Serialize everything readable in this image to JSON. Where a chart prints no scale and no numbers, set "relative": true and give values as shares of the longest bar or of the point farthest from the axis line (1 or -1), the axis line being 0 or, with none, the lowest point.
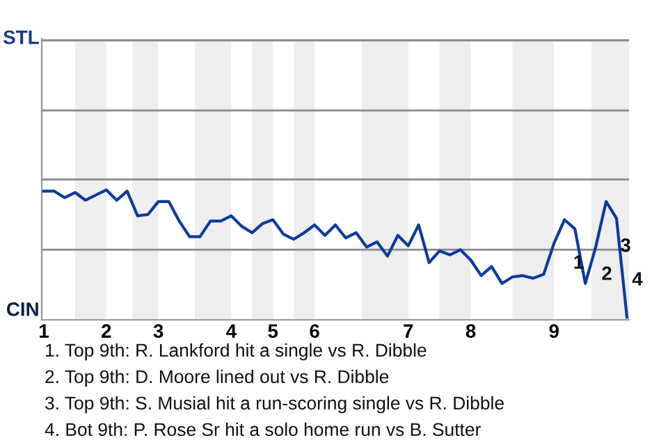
{
  "chart_data": {
    "type": "line",
    "categories": [
      "1",
      null,
      null,
      null,
      null,
      null,
      "2",
      null,
      null,
      null,
      null,
      "3",
      null,
      null,
      null,
      null,
      null,
      null,
      "4",
      null,
      null,
      null,
      "5",
      null,
      null,
      null,
      "6",
      null,
      null,
      null,
      null,
      null,
      null,
      null,
      null,
      "7",
      null,
      null,
      null,
      null,
      null,
      "8",
      null,
      null,
      null,
      null,
      null,
      null,
      null,
      "9",
      null,
      null,
      null,
      null,
      null,
      null,
      null
    ],
    "series": [
      {
        "color": "#0d3a9e",
        "values": [
          0.99,
          0.99,
          0.94,
          0.98,
          0.92,
          0.96,
          1,
          0.92,
          0.99,
          0.8,
          0.81,
          0.91,
          0.91,
          0.76,
          0.64,
          0.64,
          0.76,
          0.76,
          0.8,
          0.72,
          0.67,
          0.74,
          0.77,
          0.66,
          0.62,
          0.67,
          0.73,
          0.65,
          0.73,
          0.63,
          0.67,
          0.56,
          0.6,
          0.49,
          0.65,
          0.57,
          0.73,
          0.44,
          0.53,
          0.5,
          0.54,
          0.46,
          0.34,
          0.41,
          0.28,
          0.33,
          0.34,
          0.32,
          0.35,
          0.59,
          0.77,
          0.7,
          0.28,
          0.56,
          0.91,
          0.78,
          0.02
        ]
      }
    ],
    "relative": true,
    "ref_lines": [
      {
        "axis": "y",
        "value": 0.54,
        "color": "#888888"
      },
      {
        "axis": "y",
        "value": 1.08,
        "color": "#888888"
      },
      {
        "axis": "y",
        "value": 1.61,
        "color": "#888888"
      },
      {
        "axis": "y",
        "value": 2.15,
        "color": "#888888"
      }
    ],
    "annotations": [
      "STL",
      "CIN",
      "1",
      "2",
      "3",
      "4",
      "1. Top 9th: R. Lankford hit a single vs R. Dibble",
      "2. Top 9th: D. Moore lined out vs R. Dibble",
      "3. Top 9th: S. Musial hit a run-scoring single vs R. Dibble",
      "4. Bot 9th: P. Rose Sr hit a solo home run vs B. Sutter"
    ]
  }
}
